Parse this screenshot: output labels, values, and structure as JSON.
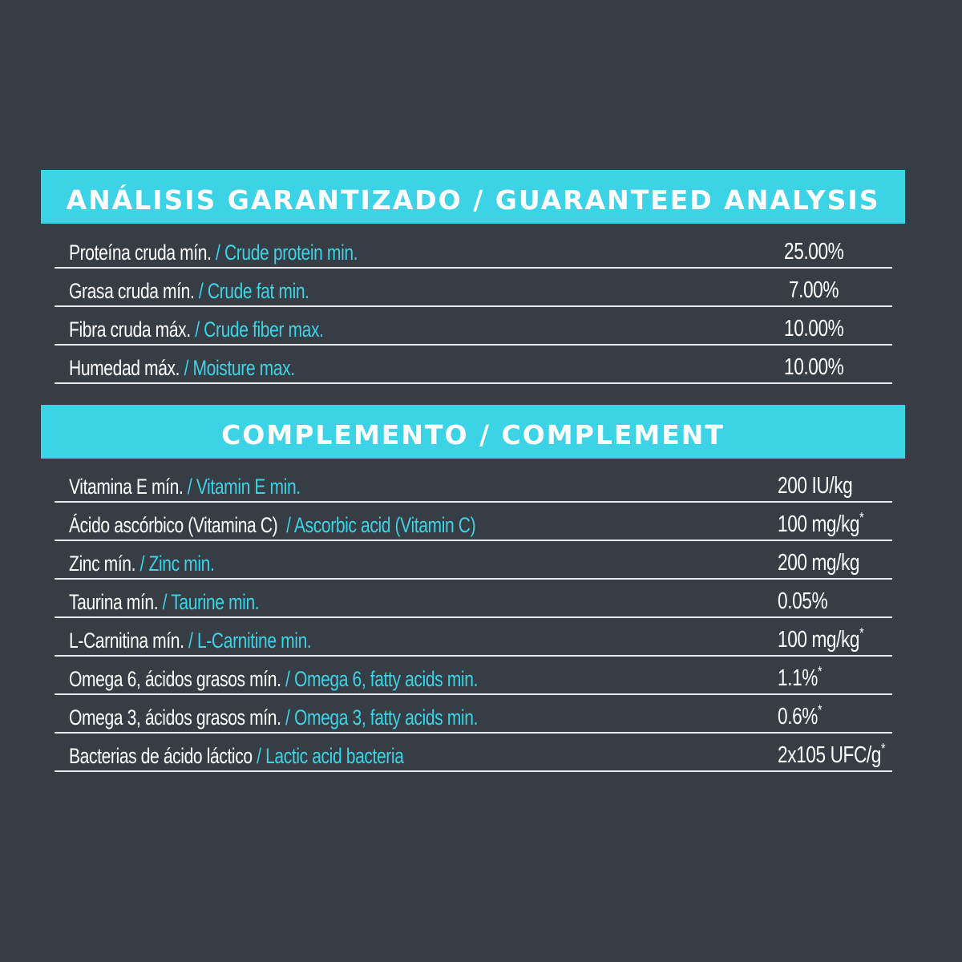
{
  "analysis": {
    "title": "ANÁLISIS GARANTIZADO / GUARANTEED ANALYSIS",
    "rows": [
      {
        "es": "Proteína cruda mín.",
        "en": "/ Crude protein min.",
        "value": "25.00%",
        "mark": ""
      },
      {
        "es": "Grasa cruda mín.",
        "en": "/ Crude fat min.",
        "value": " 7.00%",
        "mark": ""
      },
      {
        "es": "Fibra cruda máx.",
        "en": "/ Crude fiber max.",
        "value": "10.00%",
        "mark": ""
      },
      {
        "es": "Humedad máx.",
        "en": "/ Moisture max.",
        "value": "10.00%",
        "mark": ""
      }
    ]
  },
  "complement": {
    "title": "COMPLEMENTO / COMPLEMENT",
    "rows": [
      {
        "es": "Vitamina E mín.",
        "en": "/ Vitamin E min.",
        "value": "200 IU/kg",
        "mark": ""
      },
      {
        "es": "Ácido ascórbico (Vitamina C)",
        "en": "/ Ascorbic acid (Vitamin C)",
        "value": "100 mg/kg",
        "mark": "*"
      },
      {
        "es": "Zinc mín.",
        "en": "/ Zinc min.",
        "value": "200 mg/kg",
        "mark": ""
      },
      {
        "es": "Taurina mín.",
        "en": "/ Taurine min.",
        "value": "0.05%",
        "mark": ""
      },
      {
        "es": "L-Carnitina mín.",
        "en": "/ L-Carnitine min.",
        "value": "100 mg/kg",
        "mark": "*"
      },
      {
        "es": "Omega 6, ácidos grasos mín.",
        "en": "/ Omega 6, fatty acids min.",
        "value": "1.1%",
        "mark": "*"
      },
      {
        "es": "Omega 3, ácidos grasos mín.",
        "en": "/ Omega 3, fatty acids min.",
        "value": "0.6%",
        "mark": "*"
      },
      {
        "es": "Bacterias de ácido láctico",
        "en": "/ Lactic acid bacteria",
        "value": "2x105 UFC/g",
        "mark": "*"
      }
    ]
  },
  "colors": {
    "background": "#363d45",
    "accent": "#3dd3e6",
    "text": "#ffffff"
  }
}
